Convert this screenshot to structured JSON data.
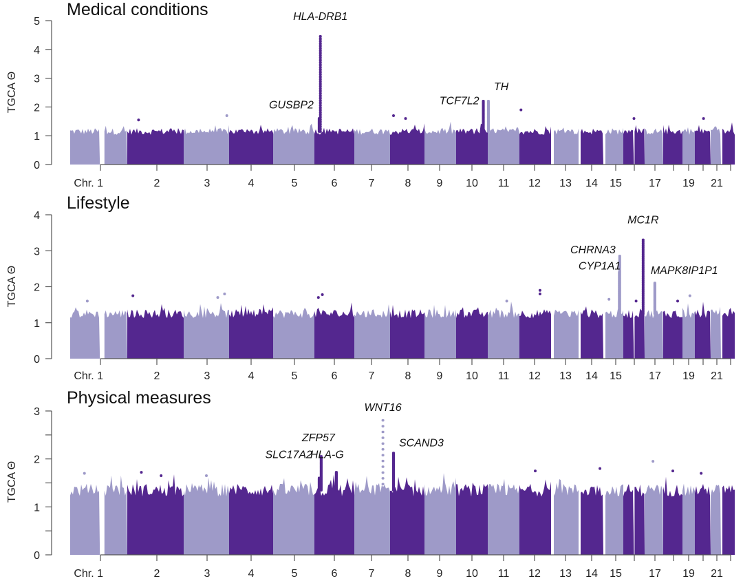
{
  "chart_data": [
    {
      "type": "scatter",
      "subtype": "manhattan",
      "title": "Medical conditions",
      "xlabel": "Chr.",
      "ylabel": "TGCA Θ",
      "ylim": [
        0,
        5
      ],
      "yticks": [
        0,
        1,
        2,
        3,
        4,
        5
      ],
      "ytick_labels": [
        "0",
        "1",
        "2",
        "3",
        "4",
        "5"
      ],
      "baseline_level": 1.15,
      "peaks": [
        {
          "gene": "HLA-DRB1",
          "chromosome": 6,
          "position": 0.15,
          "value": 4.45,
          "label_pos": "top"
        },
        {
          "gene": "GUSBP2",
          "chromosome": 6,
          "position": 0.12,
          "value": 1.6,
          "label_pos": "left"
        },
        {
          "gene": "TCF7L2",
          "chromosome": 10,
          "position": 0.86,
          "value": 2.2,
          "label_pos": "left"
        },
        {
          "gene": "TH",
          "chromosome": 11,
          "position": 0.02,
          "value": 2.2,
          "label_pos": "right"
        }
      ],
      "outliers": [
        {
          "chromosome": 2,
          "position": 0.2,
          "value": 1.55
        },
        {
          "chromosome": 3,
          "position": 0.95,
          "value": 1.7
        },
        {
          "chromosome": 8,
          "position": 0.1,
          "value": 1.7
        },
        {
          "chromosome": 8,
          "position": 0.45,
          "value": 1.6
        },
        {
          "chromosome": 12,
          "position": 0.05,
          "value": 1.9
        },
        {
          "chromosome": 16,
          "position": 0.5,
          "value": 1.6
        },
        {
          "chromosome": 20,
          "position": 0.55,
          "value": 1.6
        }
      ]
    },
    {
      "type": "scatter",
      "subtype": "manhattan",
      "title": "Lifestyle",
      "xlabel": "Chr.",
      "ylabel": "TGCA Θ",
      "ylim": [
        0,
        4
      ],
      "yticks": [
        0,
        1,
        2,
        3,
        4
      ],
      "ytick_labels": [
        "0",
        "1",
        "2",
        "3",
        "4"
      ],
      "baseline_level": 1.25,
      "peaks": [
        {
          "gene": "MC1R",
          "chromosome": 16,
          "position": 0.93,
          "value": 3.3,
          "label_pos": "top"
        },
        {
          "gene": "CHRNA3",
          "chromosome": 15,
          "position": 0.8,
          "value": 2.85,
          "label_pos": "left-high"
        },
        {
          "gene": "CYP1A1",
          "chromosome": 15,
          "position": 0.78,
          "value": 2.4,
          "label_pos": "left"
        },
        {
          "gene": "MAPK8IP1P1",
          "chromosome": 17,
          "position": 0.55,
          "value": 2.1,
          "label_pos": "right"
        }
      ],
      "outliers": [
        {
          "chromosome": 1,
          "position": 0.3,
          "value": 1.6
        },
        {
          "chromosome": 2,
          "position": 0.1,
          "value": 1.75
        },
        {
          "chromosome": 3,
          "position": 0.75,
          "value": 1.7
        },
        {
          "chromosome": 3,
          "position": 0.9,
          "value": 1.8
        },
        {
          "chromosome": 6,
          "position": 0.1,
          "value": 1.7
        },
        {
          "chromosome": 6,
          "position": 0.2,
          "value": 1.78
        },
        {
          "chromosome": 11,
          "position": 0.6,
          "value": 1.6
        },
        {
          "chromosome": 12,
          "position": 0.65,
          "value": 1.9
        },
        {
          "chromosome": 12,
          "position": 0.65,
          "value": 1.8
        },
        {
          "chromosome": 15,
          "position": 0.2,
          "value": 1.65
        },
        {
          "chromosome": 16,
          "position": 0.6,
          "value": 1.6
        },
        {
          "chromosome": 18,
          "position": 0.75,
          "value": 1.6
        },
        {
          "chromosome": 19,
          "position": 0.6,
          "value": 1.75
        }
      ]
    },
    {
      "type": "scatter",
      "subtype": "manhattan",
      "title": "Physical measures",
      "xlabel": "Chr.",
      "ylabel": "TGCA Θ",
      "ylim": [
        0,
        3
      ],
      "yticks": [
        0,
        0.5,
        1,
        1.5,
        2,
        2.5,
        3
      ],
      "ytick_labels": [
        "0",
        "",
        "1",
        "",
        "2",
        "",
        "3"
      ],
      "baseline_level": 1.35,
      "peaks": [
        {
          "gene": "WNT16",
          "chromosome": 7,
          "position": 0.8,
          "value": 2.8,
          "label_pos": "top"
        },
        {
          "gene": "ZFP57",
          "chromosome": 6,
          "position": 0.17,
          "value": 2.05,
          "label_pos": "top-left"
        },
        {
          "gene": "SLC17A2",
          "chromosome": 6,
          "position": 0.12,
          "value": 1.6,
          "label_pos": "left"
        },
        {
          "gene": "HLA-G",
          "chromosome": 6,
          "position": 0.55,
          "value": 1.72,
          "label_pos": "right"
        },
        {
          "gene": "SCAND3",
          "chromosome": 8,
          "position": 0.1,
          "value": 2.12,
          "label_pos": "right"
        }
      ],
      "outliers": [
        {
          "chromosome": 1,
          "position": 0.25,
          "value": 1.7
        },
        {
          "chromosome": 2,
          "position": 0.25,
          "value": 1.72
        },
        {
          "chromosome": 2,
          "position": 0.6,
          "value": 1.65
        },
        {
          "chromosome": 3,
          "position": 0.5,
          "value": 1.65
        },
        {
          "chromosome": 12,
          "position": 0.5,
          "value": 1.75
        },
        {
          "chromosome": 14,
          "position": 0.85,
          "value": 1.8
        },
        {
          "chromosome": 17,
          "position": 0.45,
          "value": 1.95
        },
        {
          "chromosome": 18,
          "position": 0.5,
          "value": 1.75
        },
        {
          "chromosome": 20,
          "position": 0.4,
          "value": 1.7
        }
      ]
    }
  ],
  "chromosomes": [
    "1",
    "2",
    "3",
    "4",
    "5",
    "6",
    "7",
    "8",
    "9",
    "10",
    "11",
    "12",
    "13",
    "14",
    "15",
    "16",
    "17",
    "18",
    "19",
    "20",
    "21",
    "22"
  ],
  "xtick_labels": [
    "Chr. 1",
    "2",
    "3",
    "4",
    "5",
    "6",
    "7",
    "8",
    "9",
    "10",
    "11",
    "12",
    "13",
    "14",
    "15",
    "",
    "17",
    "",
    "19",
    "",
    "21",
    ""
  ],
  "colors": {
    "odd_chromosome": "#9e9ac8",
    "even_chromosome": "#54278f",
    "axis": "#555555",
    "text": "#111111"
  }
}
